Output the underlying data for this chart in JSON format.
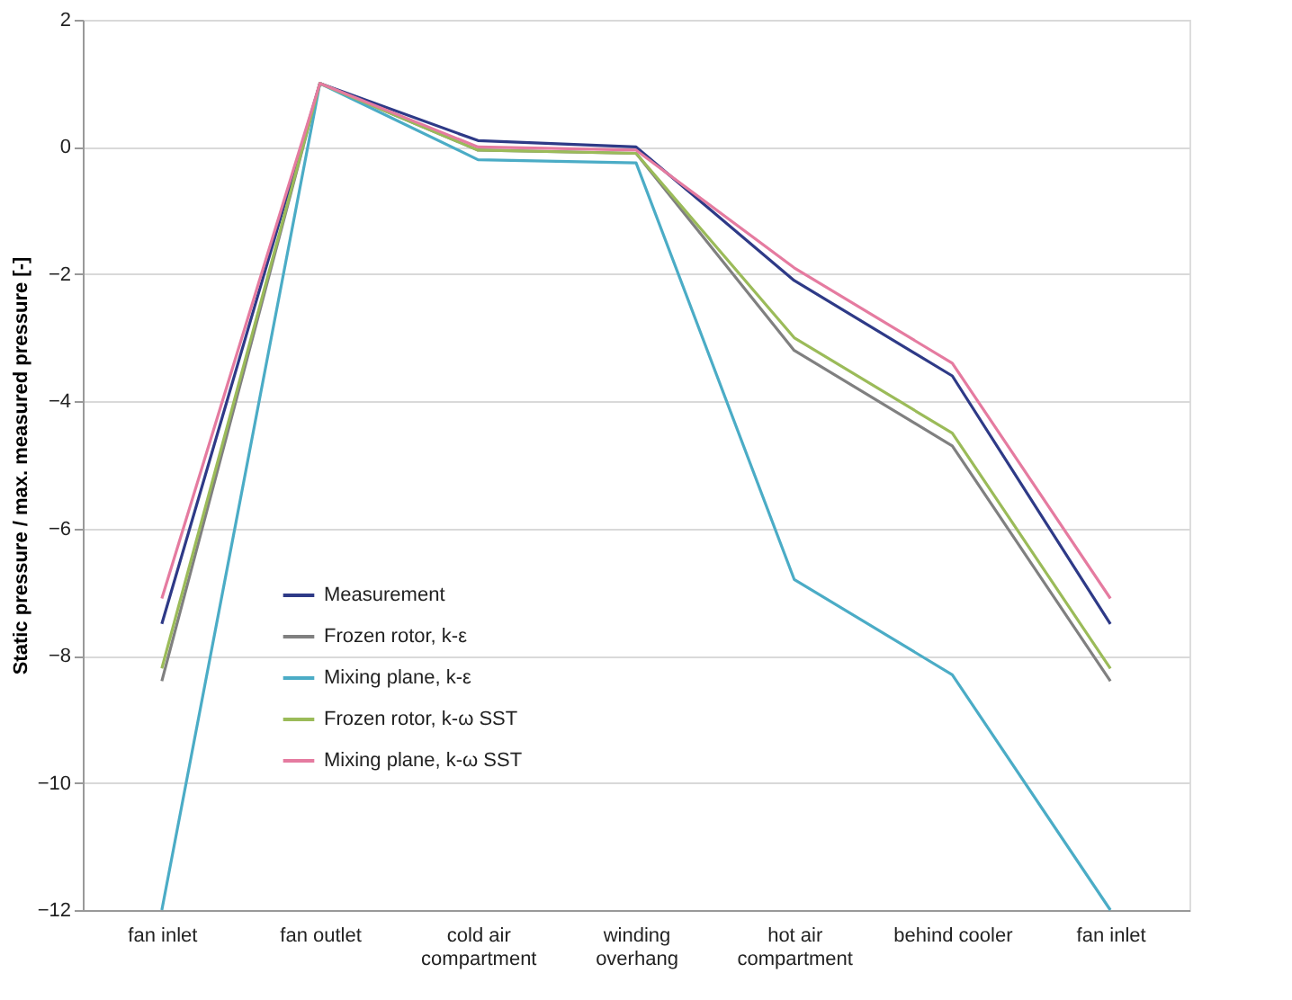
{
  "chart_data": {
    "type": "line",
    "ylabel": "Static pressure / max. measured pressure [-]",
    "categories": [
      "fan inlet",
      "fan outlet",
      "cold air\ncompartment",
      "winding\noverhang",
      "hot air\ncompartment",
      "behind cooler",
      "fan inlet"
    ],
    "series": [
      {
        "name": "Measurement",
        "color": "#2e3a87",
        "values": [
          -7.5,
          1.0,
          0.1,
          0.0,
          -2.1,
          -3.6,
          -7.5
        ]
      },
      {
        "name": "Frozen rotor, k-ε",
        "color": "#808080",
        "values": [
          -8.4,
          1.0,
          -0.05,
          -0.1,
          -3.2,
          -4.7,
          -8.4
        ]
      },
      {
        "name": "Mixing plane, k-ε",
        "color": "#4bacc6",
        "values": [
          -12,
          1.0,
          -0.2,
          -0.25,
          -6.8,
          -8.3,
          -12
        ]
      },
      {
        "name": "Frozen rotor, k-ω SST",
        "color": "#9bbb59",
        "values": [
          -8.2,
          1.0,
          -0.05,
          -0.1,
          -3.0,
          -4.5,
          -8.2
        ]
      },
      {
        "name": "Mixing plane, k-ω SST",
        "color": "#e57ba0",
        "values": [
          -7.1,
          1.0,
          0.0,
          -0.05,
          -1.9,
          -3.4,
          -7.1
        ]
      }
    ],
    "ylim": [
      -12,
      2
    ],
    "yticks": [
      -12,
      -10,
      -8,
      -6,
      -4,
      -2,
      0,
      2
    ],
    "grid": "y",
    "legend": "bottom left",
    "marker": "none",
    "line_style": "solid"
  }
}
